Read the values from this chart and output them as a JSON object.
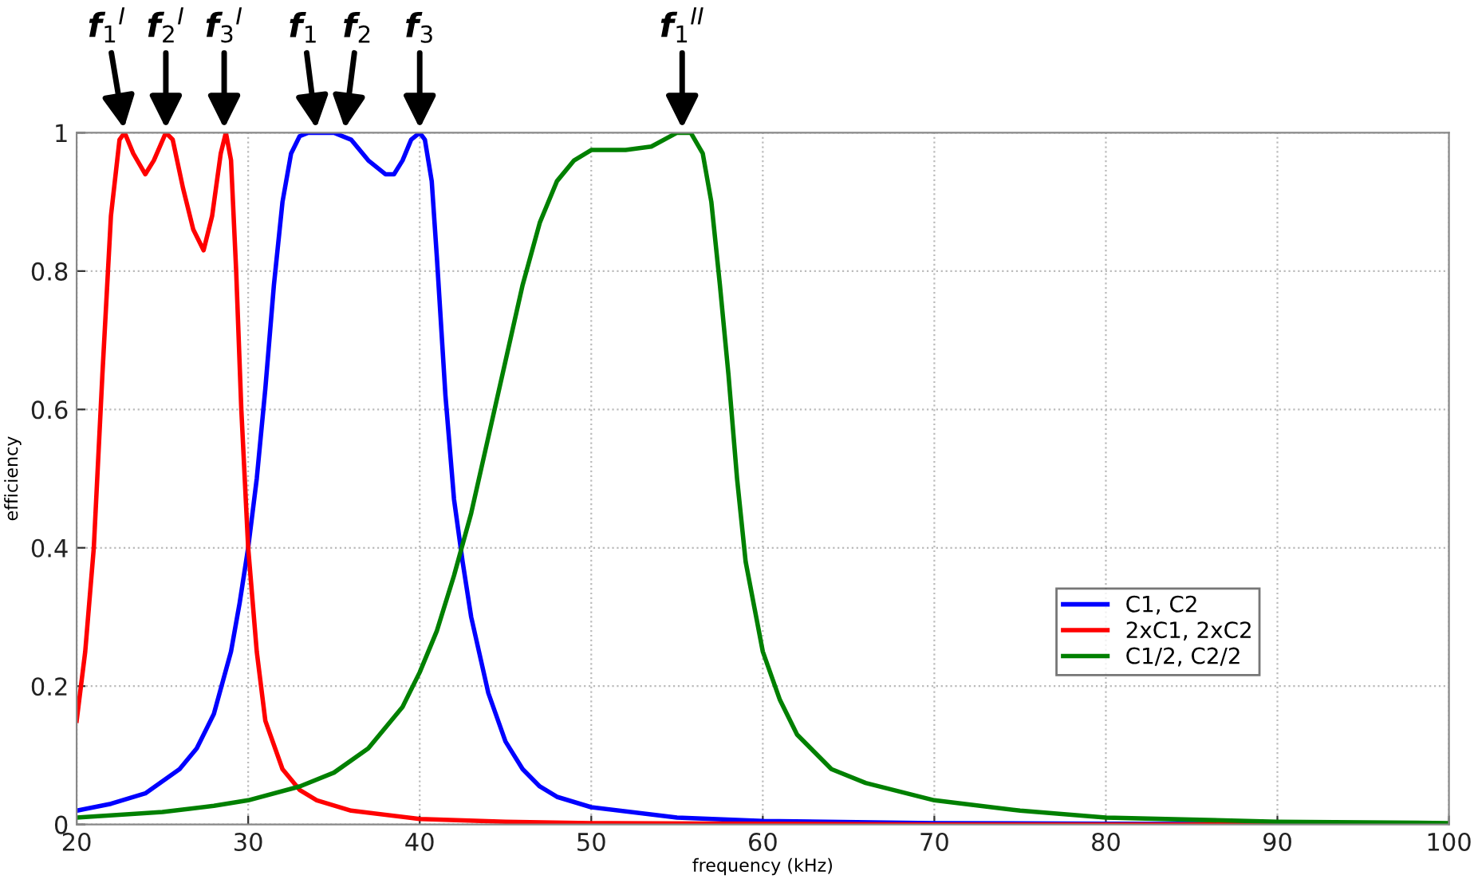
{
  "chart_data": {
    "type": "line",
    "xlabel": "frequency (kHz)",
    "ylabel": "efficiency",
    "xlim": [
      20,
      100
    ],
    "ylim": [
      0,
      1
    ],
    "xticks": [
      20,
      30,
      40,
      50,
      60,
      70,
      80,
      90,
      100
    ],
    "yticks": [
      0,
      0.2,
      0.4,
      0.6,
      0.8,
      1
    ],
    "grid": true,
    "legend": "bottom right",
    "line_style": "solid",
    "series": [
      {
        "name": "C1, C2",
        "color": "#0000ff",
        "x": [
          20,
          22,
          24,
          26,
          27,
          28,
          29,
          29.5,
          30,
          30.5,
          31,
          31.5,
          32,
          32.5,
          33,
          33.5,
          35,
          36,
          37,
          38,
          38.5,
          39,
          39.5,
          40,
          40.3,
          40.7,
          41,
          41.5,
          42,
          42.5,
          43,
          44,
          45,
          46,
          47,
          48,
          50,
          55,
          60,
          70,
          80,
          100
        ],
        "values": [
          0.02,
          0.03,
          0.045,
          0.08,
          0.11,
          0.16,
          0.25,
          0.32,
          0.4,
          0.5,
          0.63,
          0.78,
          0.9,
          0.97,
          0.995,
          1.0,
          1.0,
          0.99,
          0.96,
          0.94,
          0.94,
          0.96,
          0.99,
          1.0,
          0.99,
          0.93,
          0.82,
          0.62,
          0.47,
          0.38,
          0.3,
          0.19,
          0.12,
          0.08,
          0.055,
          0.04,
          0.025,
          0.01,
          0.005,
          0.002,
          0.001,
          0
        ]
      },
      {
        "name": "2xC1, 2xC2",
        "color": "#ff0000",
        "x": [
          20,
          20.5,
          21,
          21.5,
          22,
          22.5,
          22.8,
          23.3,
          24,
          24.5,
          25.2,
          25.6,
          26.2,
          26.8,
          27.4,
          27.9,
          28.4,
          28.7,
          29,
          29.3,
          29.6,
          30,
          30.5,
          31,
          32,
          33,
          34,
          36,
          40,
          45,
          50,
          60,
          70,
          100
        ],
        "values": [
          0.15,
          0.25,
          0.4,
          0.65,
          0.88,
          0.99,
          1.0,
          0.97,
          0.94,
          0.96,
          1.0,
          0.99,
          0.92,
          0.86,
          0.83,
          0.88,
          0.97,
          1.0,
          0.96,
          0.8,
          0.6,
          0.4,
          0.25,
          0.15,
          0.08,
          0.05,
          0.035,
          0.02,
          0.008,
          0.004,
          0.002,
          0.001,
          0,
          0
        ]
      },
      {
        "name": "C1/2, C2/2",
        "color": "#008000",
        "x": [
          20,
          25,
          28,
          30,
          33,
          35,
          37,
          39,
          40,
          41,
          42,
          43,
          44,
          45,
          46,
          47,
          48,
          49,
          50,
          52,
          53.5,
          55,
          55.8,
          56.5,
          57,
          57.5,
          58,
          58.5,
          59,
          60,
          61,
          62,
          64,
          66,
          70,
          75,
          80,
          90,
          100
        ],
        "values": [
          0.01,
          0.018,
          0.027,
          0.035,
          0.055,
          0.075,
          0.11,
          0.17,
          0.22,
          0.28,
          0.36,
          0.45,
          0.56,
          0.67,
          0.78,
          0.87,
          0.93,
          0.96,
          0.975,
          0.975,
          0.98,
          1.0,
          1.0,
          0.97,
          0.9,
          0.78,
          0.65,
          0.5,
          0.38,
          0.25,
          0.18,
          0.13,
          0.08,
          0.06,
          0.035,
          0.02,
          0.01,
          0.004,
          0.002
        ]
      }
    ],
    "annotations": [
      {
        "text": "f$_{1}$$^{I}$",
        "x": 22.8,
        "y": 1
      },
      {
        "text": "f$_{2}$$^{I}$",
        "x": 25.2,
        "y": 1
      },
      {
        "text": "f$_{3}$$^{I}$",
        "x": 28.6,
        "y": 1
      },
      {
        "text": "f$_{1}$",
        "x": 34.0,
        "y": 1
      },
      {
        "text": "f$_{2}$",
        "x": 35.6,
        "y": 1
      },
      {
        "text": "f$_{3}$",
        "x": 40.0,
        "y": 1
      },
      {
        "text": "f$_{1}$$^{II}$",
        "x": 55.3,
        "y": 1
      }
    ]
  }
}
